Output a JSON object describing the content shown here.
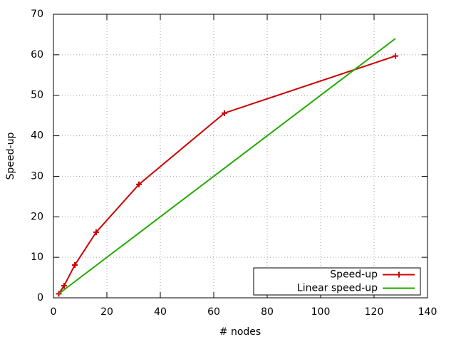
{
  "chart_data": {
    "type": "line",
    "xlabel": "# nodes",
    "ylabel": "Speed-up",
    "xlim": [
      0,
      140
    ],
    "xticks": [
      0,
      20,
      40,
      60,
      80,
      100,
      120,
      140
    ],
    "ylim": [
      0,
      70
    ],
    "yticks": [
      0,
      10,
      20,
      30,
      40,
      50,
      60,
      70
    ],
    "grid": true,
    "legend": "bottom right",
    "series": [
      {
        "name": "Speed-up",
        "color": "#cc0000",
        "marker": "+",
        "x": [
          2,
          4,
          8,
          16,
          32,
          64,
          128
        ],
        "values": [
          1,
          3,
          8.1,
          16.2,
          28,
          45.6,
          59.7
        ]
      },
      {
        "name": "Linear speed-up",
        "color": "#22aa00",
        "x": [
          2,
          4,
          8,
          16,
          32,
          64,
          128
        ],
        "values": [
          1,
          2,
          4,
          8,
          16,
          32,
          64
        ]
      }
    ]
  }
}
